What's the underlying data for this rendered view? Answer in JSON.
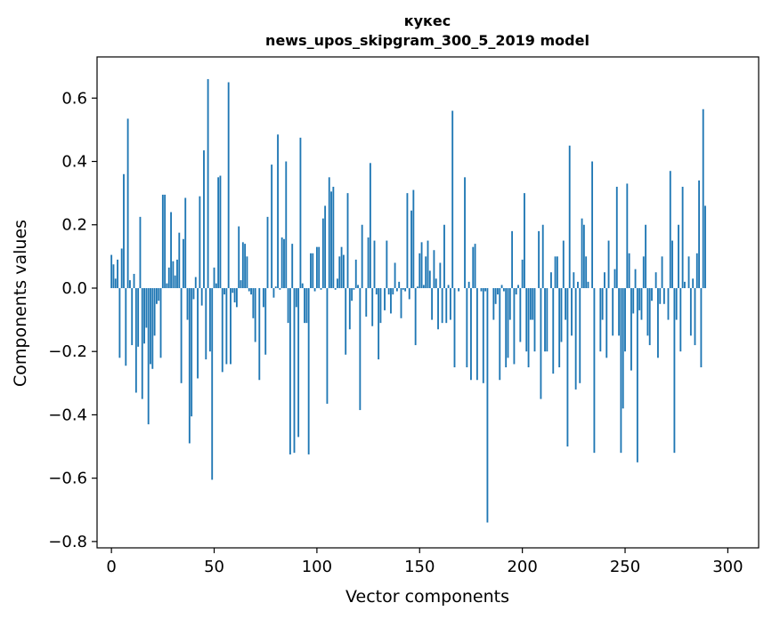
{
  "chart_data": {
    "type": "bar",
    "title_line1": "кукес",
    "title_line2": "news_upos_skipgram_300_5_2019 model",
    "xlabel": "Vector components",
    "ylabel": "Components values",
    "xlim": [
      -7,
      315
    ],
    "ylim": [
      -0.82,
      0.73
    ],
    "xticks": [
      0,
      50,
      100,
      150,
      200,
      250,
      300
    ],
    "yticks": [
      -0.8,
      -0.6,
      -0.4,
      -0.2,
      0.0,
      0.2,
      0.4,
      0.6
    ],
    "ytick_labels": [
      "−0.8",
      "−0.6",
      "−0.4",
      "−0.2",
      "0.0",
      "0.2",
      "0.4",
      "0.6"
    ],
    "xtick_labels": [
      "0",
      "50",
      "100",
      "150",
      "200",
      "250",
      "300"
    ],
    "bar_color": "#1f77b4",
    "values": [
      0.105,
      0.075,
      0.03,
      0.09,
      -0.22,
      0.125,
      0.36,
      -0.245,
      0.535,
      0.025,
      -0.18,
      0.045,
      -0.33,
      -0.185,
      0.225,
      -0.35,
      -0.175,
      -0.125,
      -0.43,
      -0.24,
      -0.255,
      -0.15,
      -0.05,
      -0.04,
      -0.22,
      0.295,
      0.295,
      0.015,
      0.065,
      0.24,
      0.085,
      0.04,
      0.09,
      0.175,
      -0.3,
      0.155,
      0.285,
      -0.1,
      -0.49,
      -0.405,
      -0.035,
      0.035,
      -0.285,
      0.29,
      -0.055,
      0.435,
      -0.225,
      0.66,
      -0.2,
      -0.605,
      0.065,
      0.015,
      0.35,
      0.355,
      -0.265,
      -0.02,
      -0.24,
      0.65,
      -0.24,
      -0.015,
      -0.045,
      -0.06,
      0.195,
      0.025,
      0.145,
      0.14,
      0.1,
      -0.01,
      -0.02,
      -0.095,
      -0.17,
      0.0,
      -0.29,
      0.0,
      -0.06,
      -0.21,
      0.225,
      0.0,
      0.39,
      -0.03,
      0.005,
      0.485,
      -0.005,
      0.16,
      0.155,
      0.4,
      -0.11,
      -0.525,
      0.14,
      -0.52,
      -0.06,
      -0.47,
      0.475,
      0.015,
      -0.11,
      -0.11,
      -0.525,
      0.11,
      0.11,
      -0.01,
      0.13,
      0.13,
      -0.005,
      0.22,
      0.26,
      -0.365,
      0.35,
      0.305,
      0.32,
      -0.005,
      0.03,
      0.1,
      0.13,
      0.105,
      -0.21,
      0.3,
      -0.13,
      -0.04,
      -0.005,
      0.09,
      0.01,
      -0.385,
      0.2,
      0.0,
      -0.09,
      0.16,
      0.395,
      -0.12,
      0.15,
      -0.02,
      -0.225,
      -0.11,
      0.0,
      -0.07,
      0.15,
      -0.02,
      -0.08,
      -0.02,
      0.08,
      -0.01,
      0.02,
      -0.095,
      -0.005,
      -0.01,
      0.3,
      -0.035,
      0.245,
      0.31,
      -0.18,
      0.005,
      0.11,
      0.145,
      0.01,
      0.1,
      0.15,
      0.055,
      -0.1,
      0.12,
      0.03,
      -0.13,
      0.08,
      -0.11,
      0.2,
      -0.11,
      0.01,
      -0.1,
      0.56,
      -0.25,
      0.0,
      -0.01,
      0.0,
      0.0,
      0.35,
      -0.25,
      0.02,
      -0.29,
      0.13,
      0.14,
      -0.29,
      0.0,
      -0.01,
      -0.3,
      -0.01,
      -0.74,
      0.0,
      0.0,
      -0.1,
      -0.05,
      -0.02,
      -0.29,
      0.01,
      -0.01,
      -0.25,
      -0.22,
      -0.1,
      0.18,
      -0.24,
      -0.02,
      0.01,
      -0.17,
      0.09,
      0.3,
      -0.2,
      -0.25,
      -0.1,
      -0.1,
      -0.2,
      0.0,
      0.18,
      -0.35,
      0.2,
      -0.2,
      -0.2,
      0.0,
      0.05,
      -0.27,
      0.1,
      0.1,
      -0.25,
      -0.17,
      0.15,
      -0.1,
      -0.5,
      0.45,
      -0.15,
      0.05,
      -0.32,
      0.02,
      -0.3,
      0.22,
      0.2,
      0.1,
      0.02,
      0.0,
      0.4,
      -0.52,
      0.0,
      0.0,
      -0.2,
      -0.1,
      0.05,
      -0.22,
      0.15,
      0.0,
      -0.15,
      0.06,
      0.32,
      -0.15,
      -0.52,
      -0.38,
      -0.2,
      0.33,
      0.11,
      -0.26,
      -0.08,
      0.06,
      -0.55,
      -0.07,
      -0.1,
      0.1,
      0.2,
      -0.15,
      -0.18,
      -0.04,
      0.0,
      0.05,
      -0.22,
      -0.05,
      0.1,
      -0.05,
      0.0,
      -0.1,
      0.37,
      0.15,
      -0.52,
      -0.1,
      0.2,
      -0.2,
      0.32,
      0.02,
      0.0,
      0.1,
      -0.15,
      0.03,
      -0.18,
      0.11,
      0.34,
      -0.25,
      0.565,
      0.26
    ]
  }
}
